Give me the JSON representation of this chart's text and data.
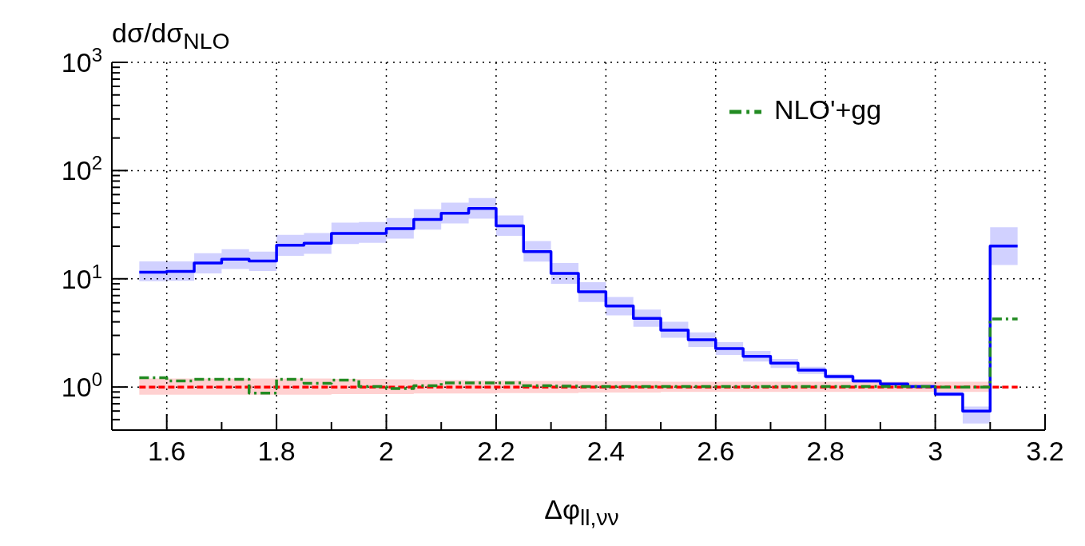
{
  "chart_data": {
    "type": "step",
    "ylabel": "dσ/dσ$_{NLO}$",
    "xlabel": "Δφ$_{ll,νν}$",
    "x": [
      1.55,
      1.6,
      1.65,
      1.7,
      1.75,
      1.8,
      1.85,
      1.9,
      1.95,
      2.0,
      2.05,
      2.1,
      2.15,
      2.2,
      2.25,
      2.3,
      2.35,
      2.4,
      2.45,
      2.5,
      2.55,
      2.6,
      2.65,
      2.7,
      2.75,
      2.8,
      2.85,
      2.9,
      2.95,
      3.0,
      3.05,
      3.1,
      3.15
    ],
    "series": [
      {
        "color": "#ff0000",
        "line_style": "dashed",
        "values": [
          1,
          1,
          1,
          1,
          1,
          1,
          1,
          1,
          1,
          1,
          1,
          1,
          1,
          1,
          1,
          1,
          1,
          1,
          1,
          1,
          1,
          1,
          1,
          1,
          1,
          1,
          1,
          1,
          1,
          1,
          1,
          1,
          1
        ],
        "lower": [
          0.85,
          0.85,
          0.85,
          0.85,
          0.85,
          0.85,
          0.85,
          0.86,
          0.86,
          0.86,
          0.87,
          0.87,
          0.87,
          0.88,
          0.88,
          0.88,
          0.89,
          0.89,
          0.89,
          0.9,
          0.9,
          0.9,
          0.9,
          0.9,
          0.9,
          0.9,
          0.9,
          0.9,
          0.9,
          0.9,
          0.9,
          0.9,
          null
        ],
        "upper": [
          1.2,
          1.2,
          1.2,
          1.2,
          1.2,
          1.2,
          1.2,
          1.19,
          1.19,
          1.18,
          1.17,
          1.16,
          1.15,
          1.15,
          1.14,
          1.14,
          1.13,
          1.13,
          1.13,
          1.12,
          1.12,
          1.12,
          1.12,
          1.12,
          1.12,
          1.12,
          1.12,
          1.12,
          1.12,
          1.12,
          1.12,
          1.12,
          null
        ]
      },
      {
        "color": "#0000ff",
        "line_style": "solid",
        "values": [
          11.5,
          11.7,
          14.0,
          15.2,
          14.6,
          20.4,
          21.3,
          26.3,
          26.3,
          29.1,
          35.3,
          40.4,
          44.7,
          30.9,
          17.8,
          11.2,
          7.6,
          5.6,
          4.3,
          3.36,
          2.73,
          2.27,
          1.92,
          1.66,
          1.43,
          1.25,
          1.14,
          1.07,
          1.01,
          0.86,
          0.6,
          20.1,
          20.1
        ],
        "lower": [
          9.5,
          9.6,
          11.2,
          12.3,
          11.8,
          16.3,
          17.0,
          21,
          21.5,
          23.5,
          28.5,
          32.5,
          36,
          25,
          14.4,
          9.0,
          6.1,
          4.6,
          3.6,
          2.85,
          2.35,
          1.98,
          1.72,
          1.5,
          1.32,
          1.18,
          1.09,
          1.04,
          0.99,
          0.82,
          0.46,
          13.4,
          13.4
        ],
        "upper": [
          14.5,
          14.5,
          17.2,
          18.8,
          17.8,
          25.5,
          26.5,
          33,
          33.5,
          36.5,
          44,
          50.5,
          55.7,
          38.5,
          22.3,
          14.0,
          9.3,
          6.8,
          5.2,
          4.0,
          3.2,
          2.6,
          2.15,
          1.82,
          1.54,
          1.32,
          1.18,
          1.1,
          1.03,
          0.9,
          0.66,
          30,
          30
        ]
      },
      {
        "name": "NLO'+gg",
        "color": "#228b22",
        "line_style": "dashdot",
        "values": [
          1.22,
          1.14,
          1.18,
          1.18,
          0.88,
          1.18,
          1.08,
          1.16,
          1.01,
          0.97,
          1.03,
          1.09,
          1.09,
          1.09,
          1.03,
          1.02,
          1.01,
          1.01,
          1.01,
          1.01,
          1.01,
          1.01,
          1.01,
          1.01,
          1.01,
          1.01,
          1.01,
          1.01,
          1.01,
          1.0,
          1.0,
          4.25,
          4.25
        ]
      }
    ],
    "log": "y",
    "xlim": [
      1.5,
      3.2
    ],
    "xticks": [
      1.6,
      {
        "value": 1.7,
        "label": null
      },
      1.8,
      {
        "value": 1.9,
        "label": null
      },
      2,
      {
        "value": 2.1,
        "label": null
      },
      2.2,
      {
        "value": 2.3,
        "label": null
      },
      2.4,
      {
        "value": 2.5,
        "label": null
      },
      2.6,
      {
        "value": 2.7,
        "label": null
      },
      2.8,
      {
        "value": 2.9,
        "label": null
      },
      3,
      {
        "value": 3.1,
        "label": null
      },
      3.2
    ],
    "ylim": [
      0.4,
      1000
    ],
    "yticks": [
      {
        "value": 0.5,
        "label": null
      },
      {
        "value": 0.6,
        "label": null
      },
      {
        "value": 0.7,
        "label": null
      },
      {
        "value": 0.8,
        "label": null
      },
      {
        "value": 0.9,
        "label": null
      },
      {
        "value": 1,
        "label": "10$^{0}$"
      },
      {
        "value": 2,
        "label": null
      },
      {
        "value": 3,
        "label": null
      },
      {
        "value": 4,
        "label": null
      },
      {
        "value": 5,
        "label": null
      },
      {
        "value": 6,
        "label": null
      },
      {
        "value": 7,
        "label": null
      },
      {
        "value": 8,
        "label": null
      },
      {
        "value": 9,
        "label": null
      },
      {
        "value": 10,
        "label": "10$^{1}$"
      },
      {
        "value": 20,
        "label": null
      },
      {
        "value": 30,
        "label": null
      },
      {
        "value": 40,
        "label": null
      },
      {
        "value": 50,
        "label": null
      },
      {
        "value": 60,
        "label": null
      },
      {
        "value": 70,
        "label": null
      },
      {
        "value": 80,
        "label": null
      },
      {
        "value": 90,
        "label": null
      },
      {
        "value": 100,
        "label": "10$^{2}$"
      },
      {
        "value": 200,
        "label": null
      },
      {
        "value": 300,
        "label": null
      },
      {
        "value": 400,
        "label": null
      },
      {
        "value": 500,
        "label": null
      },
      {
        "value": 600,
        "label": null
      },
      {
        "value": 700,
        "label": null
      },
      {
        "value": 800,
        "label": null
      },
      {
        "value": 900,
        "label": null
      },
      {
        "value": 1000,
        "label": "10$^{3}$"
      }
    ],
    "grid": true,
    "legend": "top right"
  }
}
